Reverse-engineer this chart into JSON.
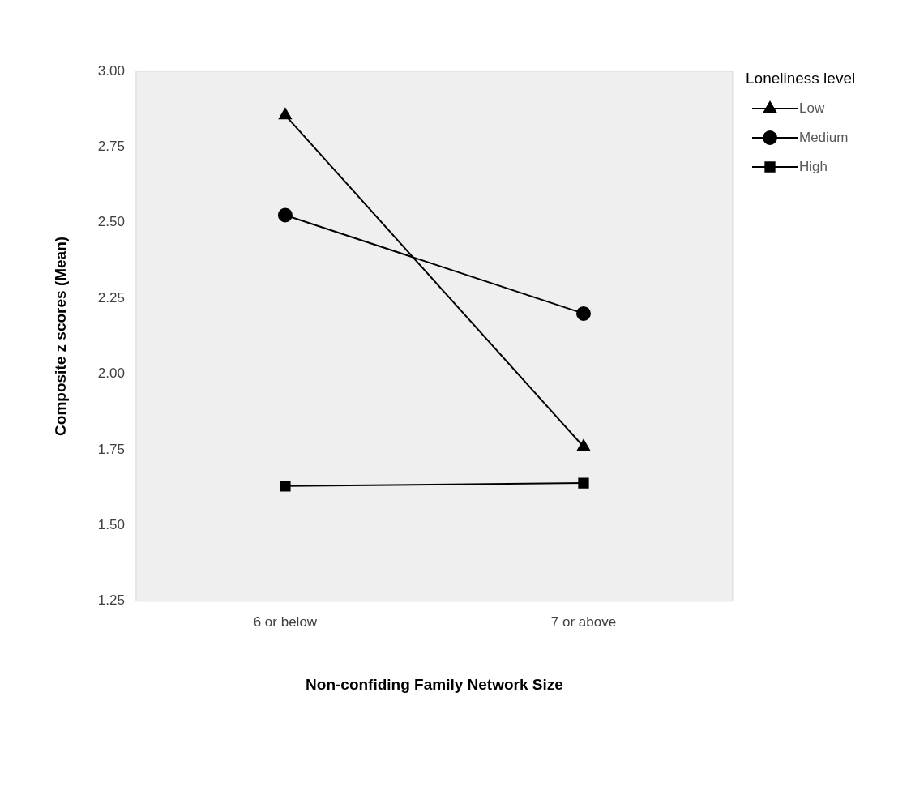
{
  "chart_data": {
    "type": "line",
    "xlabel": "Non-confiding Family Network Size",
    "ylabel": "Composite z scores (Mean)",
    "legend_title": "Loneliness level",
    "categories": [
      "6 or below",
      "7 or above"
    ],
    "series": [
      {
        "name": "Low",
        "color": "#000000",
        "marker": "triangle",
        "values": [
          2.855,
          1.76
        ]
      },
      {
        "name": "Medium",
        "color": "#000000",
        "marker": "circle",
        "values": [
          2.525,
          2.2
        ]
      },
      {
        "name": "High",
        "color": "#000000",
        "marker": "square",
        "values": [
          1.63,
          1.64
        ]
      }
    ],
    "ylim": [
      1.25,
      3.0
    ],
    "yticks": [
      1.25,
      {
        "value": 1.5,
        "label": "1.50"
      },
      1.75,
      {
        "value": 2.0,
        "label": "2.00"
      },
      2.25,
      {
        "value": 2.5,
        "label": "2.50"
      },
      2.75,
      {
        "value": 3.0,
        "label": "3.00"
      }
    ],
    "grid": false,
    "legend": "right",
    "line_style": "solid"
  }
}
